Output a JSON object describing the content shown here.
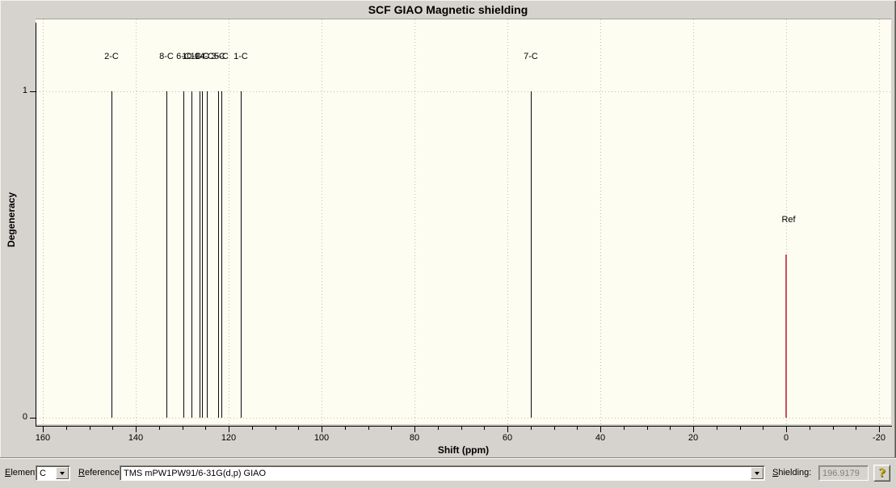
{
  "window_title": "SCF GIAO Magnetic shielding",
  "chart_data": {
    "type": "bar",
    "subtype": "stick-spectrum",
    "title": "SCF GIAO Magnetic shielding",
    "xlabel": "Shift (ppm)",
    "ylabel": "Degeneracy",
    "xlim": [
      160,
      -20
    ],
    "ylim": [
      0,
      1
    ],
    "x_axis_reversed": true,
    "grid": "dotted",
    "x_major_tick_step": 20,
    "x_minor_tick_step": 5,
    "x_tick_labels": [
      160,
      140,
      120,
      100,
      80,
      60,
      40,
      20,
      0,
      -20
    ],
    "y_tick_labels": [
      1,
      0
    ],
    "peaks": [
      {
        "label": "2-C",
        "shift_ppm": 145.3,
        "degeneracy": 1
      },
      {
        "label": "8-C",
        "shift_ppm": 133.4,
        "degeneracy": 1
      },
      {
        "label": "6-C",
        "shift_ppm": 129.7,
        "degeneracy": 1
      },
      {
        "label": "10-C",
        "shift_ppm": 128.0,
        "degeneracy": 1
      },
      {
        "label": "11-C",
        "shift_ppm": 126.3,
        "degeneracy": 1
      },
      {
        "label": "9-C",
        "shift_ppm": 125.7,
        "degeneracy": 1
      },
      {
        "label": "4-C",
        "shift_ppm": 124.7,
        "degeneracy": 1
      },
      {
        "label": "3-C",
        "shift_ppm": 122.3,
        "degeneracy": 1
      },
      {
        "label": "5-C",
        "shift_ppm": 121.6,
        "degeneracy": 1
      },
      {
        "label": "1-C",
        "shift_ppm": 117.4,
        "degeneracy": 1
      },
      {
        "label": "7-C",
        "shift_ppm": 54.9,
        "degeneracy": 1
      }
    ],
    "reference_peak": {
      "label": "Ref",
      "shift_ppm": 0.0,
      "height": 0.5,
      "color": "#c8505a"
    }
  },
  "toolbar": {
    "element_label": "Element:",
    "element_value": "C",
    "reference_label": "Reference:",
    "reference_value": "TMS mPW1PW91/6-31G(d,p) GIAO",
    "shielding_label": "Shielding:",
    "shielding_value": "196.9179",
    "help_icon": "?"
  },
  "colors": {
    "chrome": "#d6d3ce",
    "plot_background": "#fdfdf2",
    "grid_dots": "#c2beb1",
    "peak_line": "#0a0a0a",
    "reference_line": "#c8505a",
    "disabled_text": "#82807a",
    "help_gold": "#c2a800"
  }
}
